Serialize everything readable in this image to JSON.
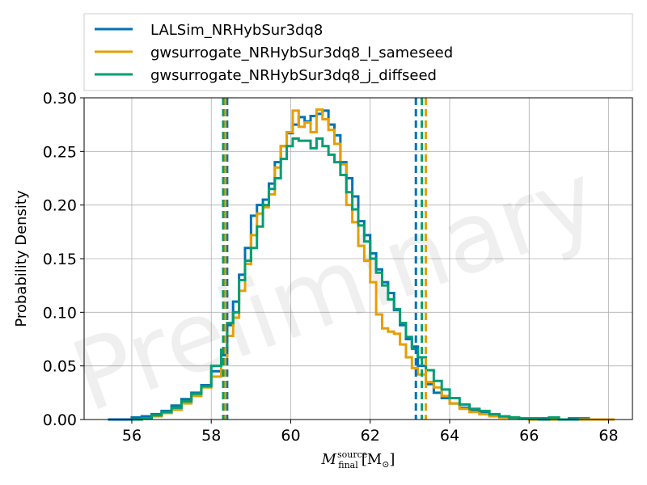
{
  "chart_data": {
    "type": "histogram",
    "xlabel_tex": "M_final^source [M_⊙]",
    "xlabel": {
      "symbol": "M",
      "sub": "final",
      "sup": "source",
      "unit": "[M",
      "unit_sub": "⊙",
      "unit_close": "]"
    },
    "ylabel": "Probability Density",
    "xlim": [
      54.8,
      68.6
    ],
    "ylim": [
      0.0,
      0.3
    ],
    "xticks": [
      56,
      58,
      60,
      62,
      64,
      66,
      68
    ],
    "yticks": [
      0.0,
      0.05,
      0.1,
      0.15,
      0.2,
      0.25,
      0.3
    ],
    "ytick_labels": [
      "0.00",
      "0.05",
      "0.10",
      "0.15",
      "0.20",
      "0.25",
      "0.30"
    ],
    "grid": true,
    "legend_position": "top, above plot",
    "watermark": "Preliminary",
    "series": [
      {
        "name": "LALSim_NRHybSur3dq8",
        "color": "#0072B2",
        "quantile_lines": [
          58.4,
          63.15
        ],
        "bins": [
          [
            55.4,
            0.0
          ],
          [
            55.7,
            0.0
          ],
          [
            56.0,
            0.002
          ],
          [
            56.25,
            0.003
          ],
          [
            56.5,
            0.005
          ],
          [
            56.75,
            0.008
          ],
          [
            57.0,
            0.013
          ],
          [
            57.25,
            0.019
          ],
          [
            57.5,
            0.025
          ],
          [
            57.75,
            0.032
          ],
          [
            58.0,
            0.045
          ],
          [
            58.25,
            0.06
          ],
          [
            58.4,
            0.088
          ],
          [
            58.55,
            0.11
          ],
          [
            58.7,
            0.135
          ],
          [
            58.85,
            0.16
          ],
          [
            59.0,
            0.19
          ],
          [
            59.15,
            0.2
          ],
          [
            59.3,
            0.205
          ],
          [
            59.45,
            0.22
          ],
          [
            59.6,
            0.24
          ],
          [
            59.75,
            0.255
          ],
          [
            59.9,
            0.267
          ],
          [
            60.05,
            0.275
          ],
          [
            60.2,
            0.282
          ],
          [
            60.35,
            0.278
          ],
          [
            60.5,
            0.283
          ],
          [
            60.65,
            0.285
          ],
          [
            60.8,
            0.288
          ],
          [
            60.95,
            0.275
          ],
          [
            61.1,
            0.265
          ],
          [
            61.25,
            0.24
          ],
          [
            61.4,
            0.225
          ],
          [
            61.55,
            0.208
          ],
          [
            61.7,
            0.185
          ],
          [
            61.85,
            0.172
          ],
          [
            62.0,
            0.155
          ],
          [
            62.15,
            0.14
          ],
          [
            62.3,
            0.128
          ],
          [
            62.45,
            0.118
          ],
          [
            62.6,
            0.102
          ],
          [
            62.75,
            0.088
          ],
          [
            62.9,
            0.075
          ],
          [
            63.05,
            0.068
          ],
          [
            63.2,
            0.05
          ],
          [
            63.4,
            0.033
          ],
          [
            63.6,
            0.025
          ],
          [
            63.8,
            0.02
          ],
          [
            64.0,
            0.015
          ],
          [
            64.25,
            0.011
          ],
          [
            64.5,
            0.009
          ],
          [
            64.75,
            0.006
          ],
          [
            65.0,
            0.004
          ],
          [
            65.25,
            0.003
          ],
          [
            65.5,
            0.002
          ],
          [
            65.75,
            0.001
          ],
          [
            66.0,
            0.001
          ],
          [
            66.5,
            0.0
          ],
          [
            67.0,
            0.001
          ],
          [
            67.5,
            0.0
          ]
        ]
      },
      {
        "name": "gwsurrogate_NRHybSur3dq8_l_sameseed",
        "color": "#E69F00",
        "quantile_lines": [
          58.35,
          63.4
        ],
        "bins": [
          [
            56.0,
            0.0
          ],
          [
            56.25,
            0.001
          ],
          [
            56.5,
            0.003
          ],
          [
            56.75,
            0.006
          ],
          [
            57.0,
            0.009
          ],
          [
            57.25,
            0.015
          ],
          [
            57.5,
            0.022
          ],
          [
            57.75,
            0.03
          ],
          [
            58.0,
            0.04
          ],
          [
            58.25,
            0.055
          ],
          [
            58.4,
            0.078
          ],
          [
            58.55,
            0.095
          ],
          [
            58.7,
            0.12
          ],
          [
            58.85,
            0.145
          ],
          [
            59.0,
            0.172
          ],
          [
            59.15,
            0.192
          ],
          [
            59.3,
            0.198
          ],
          [
            59.45,
            0.21
          ],
          [
            59.6,
            0.235
          ],
          [
            59.75,
            0.255
          ],
          [
            59.9,
            0.268
          ],
          [
            60.05,
            0.288
          ],
          [
            60.2,
            0.273
          ],
          [
            60.35,
            0.277
          ],
          [
            60.5,
            0.268
          ],
          [
            60.65,
            0.289
          ],
          [
            60.8,
            0.28
          ],
          [
            60.95,
            0.27
          ],
          [
            61.1,
            0.257
          ],
          [
            61.25,
            0.238
          ],
          [
            61.4,
            0.2
          ],
          [
            61.55,
            0.184
          ],
          [
            61.7,
            0.162
          ],
          [
            61.85,
            0.148
          ],
          [
            62.0,
            0.128
          ],
          [
            62.15,
            0.098
          ],
          [
            62.3,
            0.085
          ],
          [
            62.45,
            0.082
          ],
          [
            62.6,
            0.08
          ],
          [
            62.75,
            0.07
          ],
          [
            62.9,
            0.058
          ],
          [
            63.05,
            0.048
          ],
          [
            63.2,
            0.042
          ],
          [
            63.4,
            0.035
          ],
          [
            63.6,
            0.03
          ],
          [
            63.8,
            0.022
          ],
          [
            64.0,
            0.015
          ],
          [
            64.25,
            0.01
          ],
          [
            64.5,
            0.007
          ],
          [
            64.75,
            0.005
          ],
          [
            65.0,
            0.003
          ],
          [
            65.25,
            0.002
          ],
          [
            65.5,
            0.001
          ],
          [
            66.0,
            0.0
          ],
          [
            66.5,
            0.0
          ],
          [
            67.0,
            0.0
          ],
          [
            67.9,
            0.0
          ]
        ]
      },
      {
        "name": "gwsurrogate_NRHybSur3dq8_j_diffseed",
        "color": "#009E73",
        "quantile_lines": [
          58.3,
          63.3
        ],
        "bins": [
          [
            56.0,
            0.0
          ],
          [
            56.25,
            0.001
          ],
          [
            56.5,
            0.004
          ],
          [
            56.75,
            0.007
          ],
          [
            57.0,
            0.011
          ],
          [
            57.25,
            0.017
          ],
          [
            57.5,
            0.024
          ],
          [
            57.75,
            0.031
          ],
          [
            58.0,
            0.05
          ],
          [
            58.25,
            0.065
          ],
          [
            58.4,
            0.09
          ],
          [
            58.55,
            0.1
          ],
          [
            58.7,
            0.13
          ],
          [
            58.85,
            0.148
          ],
          [
            59.0,
            0.16
          ],
          [
            59.15,
            0.18
          ],
          [
            59.3,
            0.2
          ],
          [
            59.45,
            0.215
          ],
          [
            59.6,
            0.225
          ],
          [
            59.75,
            0.243
          ],
          [
            59.9,
            0.255
          ],
          [
            60.05,
            0.262
          ],
          [
            60.2,
            0.26
          ],
          [
            60.35,
            0.26
          ],
          [
            60.5,
            0.253
          ],
          [
            60.65,
            0.262
          ],
          [
            60.8,
            0.255
          ],
          [
            60.95,
            0.247
          ],
          [
            61.1,
            0.24
          ],
          [
            61.25,
            0.228
          ],
          [
            61.4,
            0.212
          ],
          [
            61.55,
            0.196
          ],
          [
            61.7,
            0.181
          ],
          [
            61.85,
            0.166
          ],
          [
            62.0,
            0.15
          ],
          [
            62.15,
            0.137
          ],
          [
            62.3,
            0.125
          ],
          [
            62.45,
            0.112
          ],
          [
            62.6,
            0.103
          ],
          [
            62.75,
            0.09
          ],
          [
            62.9,
            0.077
          ],
          [
            63.05,
            0.066
          ],
          [
            63.2,
            0.058
          ],
          [
            63.4,
            0.046
          ],
          [
            63.6,
            0.036
          ],
          [
            63.8,
            0.028
          ],
          [
            64.0,
            0.02
          ],
          [
            64.25,
            0.014
          ],
          [
            64.5,
            0.01
          ],
          [
            64.75,
            0.008
          ],
          [
            65.0,
            0.005
          ],
          [
            65.25,
            0.003
          ],
          [
            65.5,
            0.002
          ],
          [
            65.75,
            0.001
          ],
          [
            66.0,
            0.001
          ],
          [
            66.25,
            0.0
          ],
          [
            66.5,
            0.002
          ],
          [
            66.75,
            0.0
          ],
          [
            67.0,
            0.0
          ]
        ]
      }
    ]
  }
}
